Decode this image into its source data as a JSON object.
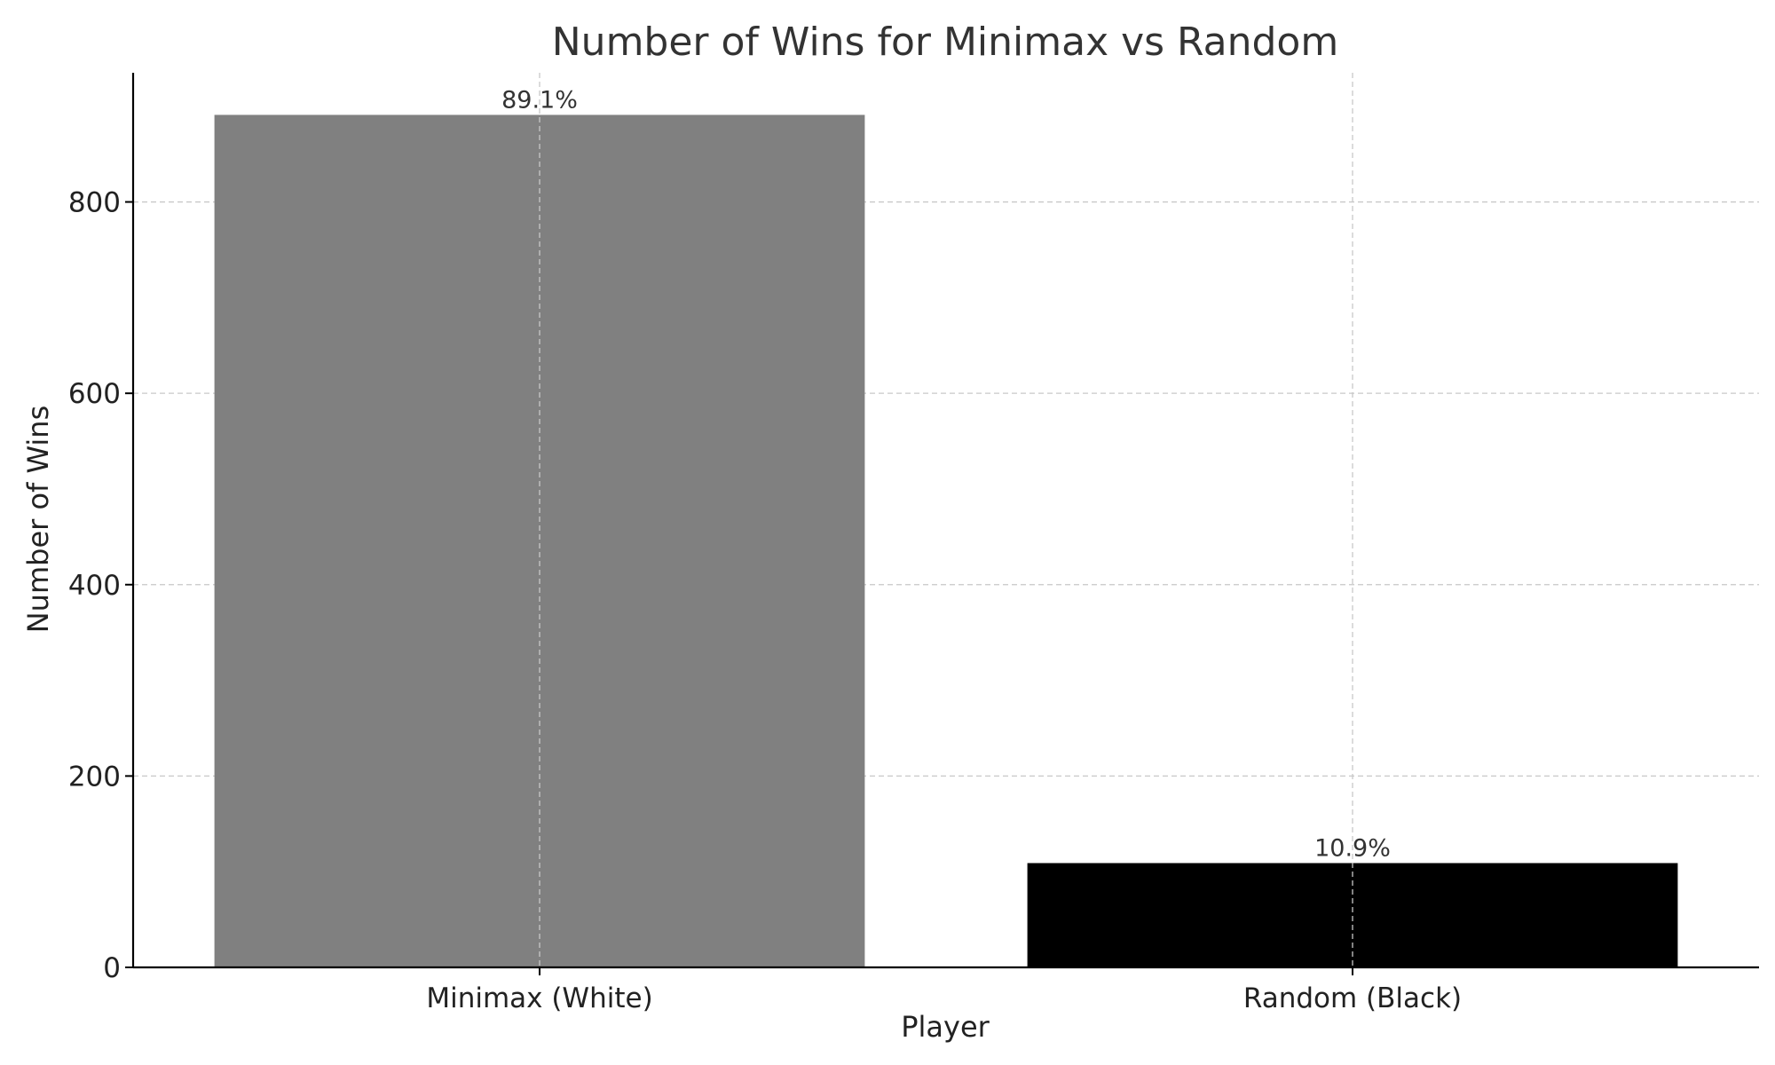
{
  "chart_data": {
    "type": "bar",
    "title": "Number of Wins for Minimax vs Random",
    "xlabel": "Player",
    "ylabel": "Number of Wins",
    "categories": [
      "Minimax (White)",
      "Random (Black)"
    ],
    "values": [
      891,
      109
    ],
    "data_labels": [
      "89.1%",
      "10.9%"
    ],
    "colors": [
      "#808080",
      "#000000"
    ],
    "ylim": [
      0,
      935
    ],
    "yticks": [
      0,
      200,
      400,
      600,
      800
    ],
    "grid": true
  }
}
